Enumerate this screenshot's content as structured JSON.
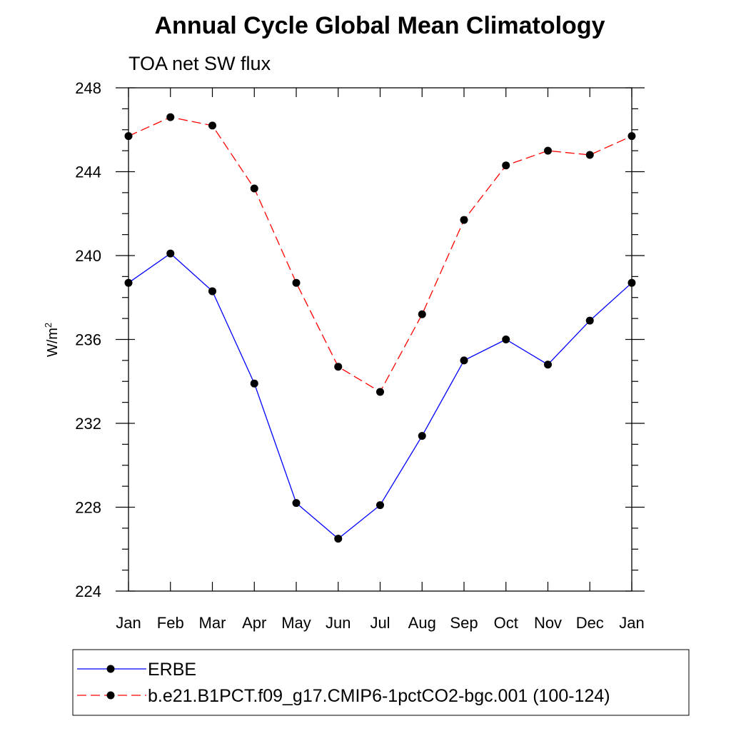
{
  "chart_data": {
    "type": "line",
    "title": "Annual Cycle Global Mean Climatology",
    "subtitle": "TOA net SW flux",
    "xlabel": "",
    "ylabel": "W/m",
    "ylabel_superscript": "2",
    "ylim": [
      224,
      248
    ],
    "yticks": [
      224,
      228,
      232,
      236,
      240,
      244,
      248
    ],
    "yticks_minor_step": 1,
    "categories": [
      "Jan",
      "Feb",
      "Mar",
      "Apr",
      "May",
      "Jun",
      "Jul",
      "Aug",
      "Sep",
      "Oct",
      "Nov",
      "Dec",
      "Jan"
    ],
    "series": [
      {
        "name": "ERBE",
        "color": "#0000ff",
        "line_style": "solid",
        "marker": "filled-circle",
        "values": [
          238.7,
          240.1,
          238.3,
          233.9,
          228.2,
          226.5,
          228.1,
          231.4,
          235.0,
          236.0,
          234.8,
          236.9,
          238.7
        ]
      },
      {
        "name": "b.e21.B1PCT.f09_g17.CMIP6-1pctCO2-bgc.001 (100-124)",
        "color": "#ff0000",
        "line_style": "dashed",
        "marker": "filled-circle",
        "values": [
          245.7,
          246.6,
          246.2,
          243.2,
          238.7,
          234.7,
          233.5,
          237.2,
          241.7,
          244.3,
          245.0,
          244.8,
          245.7
        ]
      }
    ],
    "grid": false,
    "legend_position": "bottom"
  }
}
